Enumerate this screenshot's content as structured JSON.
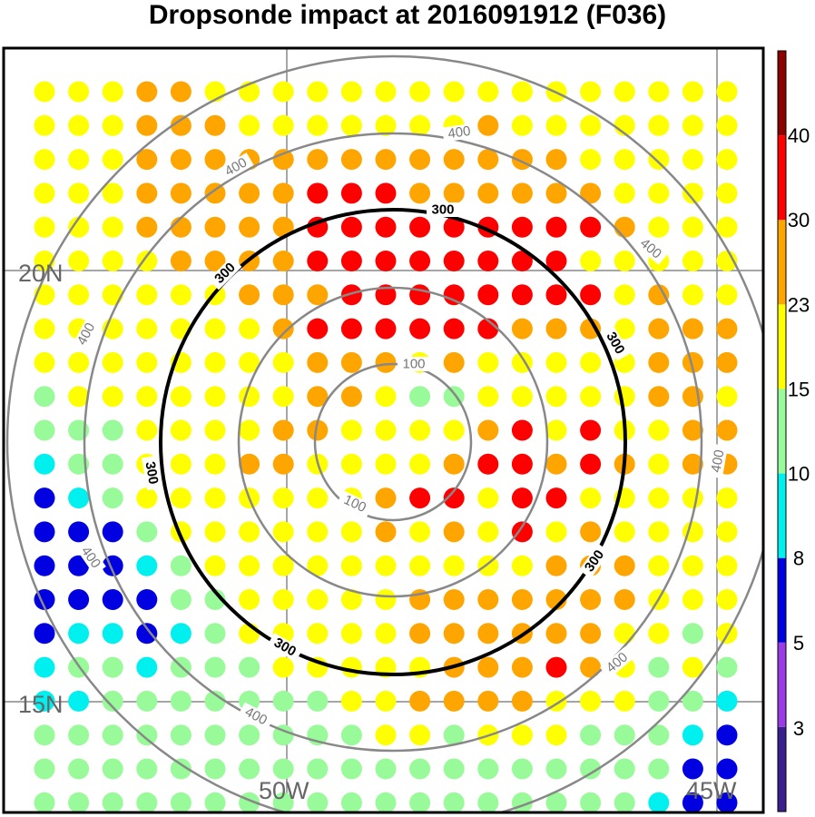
{
  "title": "Dropsonde impact at 2016091912 (F036)",
  "map": {
    "lat_labels": [
      "20N",
      "15N"
    ],
    "lon_labels": [
      "50W",
      "45W"
    ],
    "contour_labels": {
      "inner": "100",
      "bold": "300",
      "outer": "400"
    }
  },
  "colorbar": {
    "labels": [
      "3",
      "5",
      "8",
      "10",
      "15",
      "23",
      "30",
      "40"
    ],
    "colors": [
      "#3a1f8e",
      "#9a3ce6",
      "#0000e0",
      "#00f0f0",
      "#98fa98",
      "#ffff00",
      "#ffa500",
      "#ff0000",
      "#8b0000"
    ]
  },
  "grid": {
    "rows": [
      "YYYOOYYYYYYYYYYYYYYYY",
      "YYYOOOYYYYYYYOYYYYYYY",
      "YYYOOOOOOOOOOOOOYYYYY",
      "YYYOOOOORRROOOOOOYYYY",
      "YYYOOOOORRRRRRRRROYYY",
      "YYYYOOOORRRRRRRRYYYYY",
      "YYYYYYOOORRRRRRRRYOYY",
      "YYYYYYYORRRRRROOOYOOO",
      "YYYYYYYYOOOYOYYYYYOOO",
      "GYYYYYYYOOYGGYYYYYOOY",
      "GGGYYYYOOYYYYORYRYYOO",
      "CGGYYYOOYYYYORROROYOO",
      "BCGYYYYYYYORRYRRYYYYY",
      "BBBGYYYYYYOYOYRYOYYYY",
      "BBBCGYYYYYYYYYYOOOYYY",
      "BBBBGGYYYYYOOOOOOOYYY",
      "BCCBCGYYYYYOOOOOOYYGY",
      "CGGCGGGYYYYYOOOROYGYG",
      "CCGGGGGGGYYOOOOYYYGGC",
      "GGGGGGGGGGYYGYYYGGGCB",
      "GGGGGGGGGGGGGGGGGGGBB",
      "GGGGGGGGGGGGGGGGGGCBB"
    ],
    "color_key": {
      "B": "#0000e0",
      "C": "#00f0f0",
      "G": "#98fa98",
      "Y": "#ffff00",
      "O": "#ffa500",
      "R": "#ff0000"
    }
  }
}
